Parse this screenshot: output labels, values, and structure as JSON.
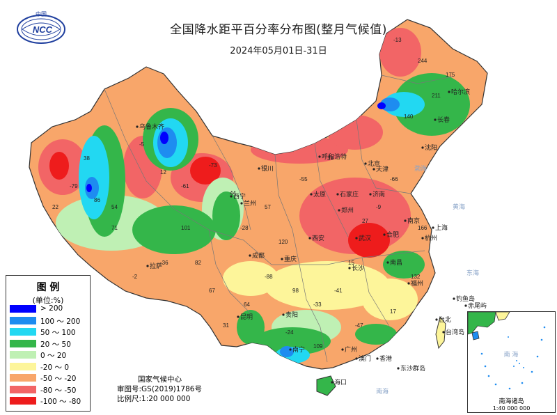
{
  "header": {
    "title": "全国降水距平百分率分布图(整月气候值)",
    "subtitle": "2024年05月01日-31日"
  },
  "logo": {
    "name": "ncc-logo-icon",
    "top_text": "中国",
    "main_text": "NCC"
  },
  "legend": {
    "title": "图 例",
    "unit": "(单位:%)",
    "items": [
      {
        "label": "> 200",
        "color": "#0000ff"
      },
      {
        "label": "100 ～ 200",
        "color": "#1e8cf0"
      },
      {
        "label": "50 ～ 100",
        "color": "#22d8f2"
      },
      {
        "label": "20 ～ 50",
        "color": "#34b64a"
      },
      {
        "label": "0 ～ 20",
        "color": "#bff0b4"
      },
      {
        "label": "-20 ～ 0",
        "color": "#fdf59a"
      },
      {
        "label": "-50 ～ -20",
        "color": "#f8a66a"
      },
      {
        "label": "-80 ～ -50",
        "color": "#f26566"
      },
      {
        "label": "-100 ～ -80",
        "color": "#ee1c1c"
      }
    ]
  },
  "credits": {
    "center": "国家气候中心",
    "review": "审图号:GS(2019)1786号",
    "scale": "比例尺:1:20 000 000"
  },
  "inset": {
    "sea": "南 海",
    "label": "南海诸岛",
    "scale": "1:40 000 000"
  },
  "labels": {
    "cities": [
      "乌鲁木齐",
      "拉萨",
      "西宁",
      "兰州",
      "银川",
      "呼和浩特",
      "太原",
      "石家庄",
      "北京",
      "天津",
      "济南",
      "郑州",
      "西安",
      "成都",
      "重庆",
      "贵阳",
      "昆明",
      "南宁",
      "广州",
      "海口",
      "长沙",
      "武汉",
      "南昌",
      "合肥",
      "南京",
      "杭州",
      "上海",
      "福州",
      "台北",
      "沈阳",
      "长春",
      "哈尔滨",
      "香港",
      "澳门",
      "钓鱼岛",
      "赤尾屿",
      "台湾岛",
      "东沙群岛"
    ],
    "seas": [
      "渤海",
      "黄海",
      "东海",
      "南海"
    ]
  },
  "station_values": [
    "38",
    "86",
    "71",
    "-5",
    "12",
    "-61",
    "-73",
    "44",
    "-28",
    "57",
    "120",
    "98",
    "-33",
    "-41",
    "15",
    "27",
    "-9",
    "-66",
    "140",
    "211",
    "175",
    "244",
    "-13",
    "38",
    "-55",
    "-88",
    "64",
    "31",
    "-24",
    "109",
    "-47",
    "17",
    "132",
    "166",
    "82",
    "-36",
    "-2",
    "54",
    "-79",
    "22",
    "101",
    "67"
  ]
}
